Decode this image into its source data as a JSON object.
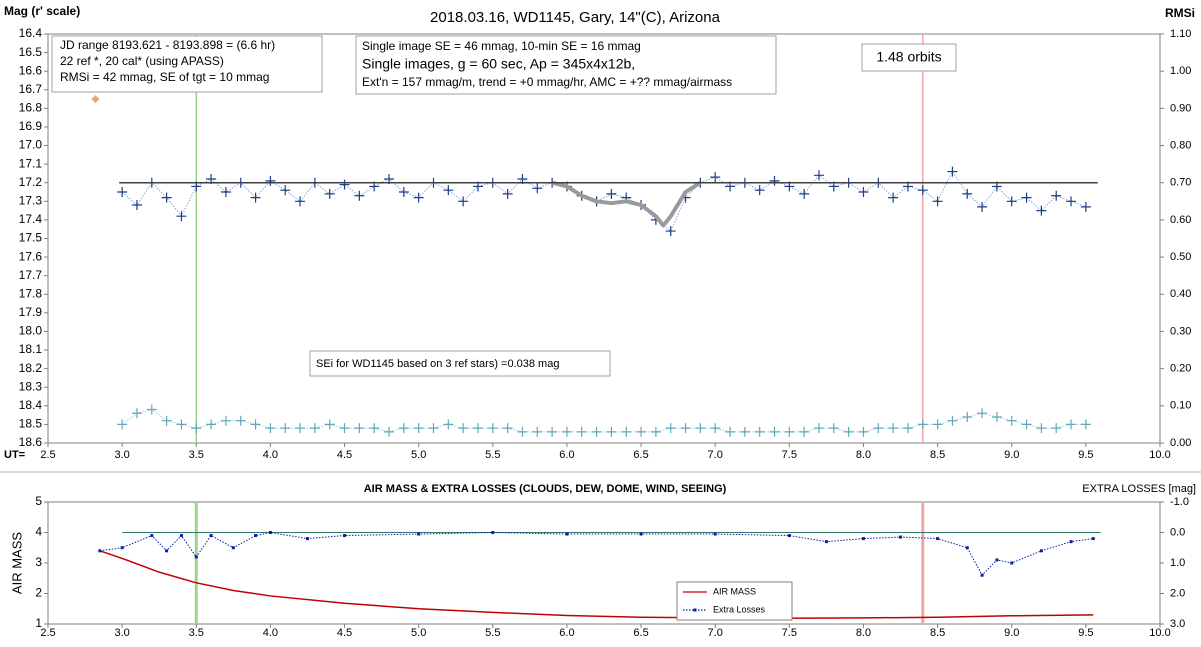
{
  "charts": [
    {
      "type": "scatter",
      "title": "2018.03.16,  WD1145, Gary, 14\"(C), Arizona",
      "y_label": "Mag (r' scale)",
      "y2_label": "RMSi",
      "x_label": "UT=",
      "xlim": [
        2.5,
        10
      ],
      "ylim": [
        18.6,
        16.4
      ],
      "y2lim": [
        0,
        1.1
      ],
      "xticks": [
        2.5,
        {
          "value": 3,
          "label": "3.0"
        },
        3.5,
        {
          "value": 4,
          "label": "4.0"
        },
        4.5,
        {
          "value": 5,
          "label": "5.0"
        },
        5.5,
        {
          "value": 6,
          "label": "6.0"
        },
        6.5,
        {
          "value": 7,
          "label": "7.0"
        },
        7.5,
        {
          "value": 8,
          "label": "8.0"
        },
        8.5,
        {
          "value": 9,
          "label": "9.0"
        },
        9.5,
        {
          "value": 10,
          "label": "10.0"
        }
      ],
      "yticks": [
        16.4,
        16.5,
        16.6,
        16.7,
        16.8,
        16.9,
        {
          "value": 17,
          "label": "17.0"
        },
        17.1,
        17.2,
        17.3,
        17.4,
        17.5,
        17.6,
        17.7,
        17.8,
        17.9,
        {
          "value": 18,
          "label": "18.0"
        },
        18.1,
        18.2,
        18.3,
        18.4,
        18.5,
        18.6
      ],
      "y2ticks": [
        {
          "value": 1.1,
          "label": "1.10"
        },
        {
          "value": 1,
          "label": "1.00"
        },
        {
          "value": 0.9,
          "label": "0.90"
        },
        {
          "value": 0.8,
          "label": "0.80"
        },
        {
          "value": 0.7,
          "label": "0.70"
        },
        {
          "value": 0.6,
          "label": "0.60"
        },
        {
          "value": 0.5,
          "label": "0.50"
        },
        {
          "value": 0.4,
          "label": "0.40"
        },
        {
          "value": 0.3,
          "label": "0.30"
        },
        {
          "value": 0.2,
          "label": "0.20"
        },
        {
          "value": 0.1,
          "label": "0.10"
        },
        {
          "value": 0,
          "label": "0.00"
        }
      ],
      "vlines": [
        {
          "x": 3.5,
          "color": "#9fd38a"
        },
        {
          "x": 8.4,
          "color": "#f2a7a7"
        }
      ],
      "annotations": {
        "box1": [
          "JD range  8193.621 - 8193.898  = (6.6 hr)",
          "22 ref *, 20 cal* (using APASS)",
          "RMSi = 42 mmag, SE of tgt = 10 mmag"
        ],
        "box2": [
          "Single image SE = 46 mmag, 10-min SE = 16 mmag",
          "Single images, g = 60 sec, Ap = 345x4x12b,",
          "Ext'n = 157 mmag/m, trend = +0 mmag/hr, AMC = +?? mmag/airmass"
        ],
        "orbits": "1.48 orbits",
        "sei": "SEi for WD1145 based on 3 ref stars) =0.038 mag"
      },
      "series": [
        {
          "color": "#1f3c88",
          "marker": "cross",
          "line": "dotted",
          "lineColor": "#7fa8d8",
          "x": [
            3.0,
            3.1,
            3.2,
            3.3,
            3.4,
            3.5,
            3.6,
            3.7,
            3.8,
            3.9,
            4.0,
            4.1,
            4.2,
            4.3,
            4.4,
            4.5,
            4.6,
            4.7,
            4.8,
            4.9,
            5.0,
            5.1,
            5.2,
            5.3,
            5.4,
            5.5,
            5.6,
            5.7,
            5.8,
            5.9,
            6.0,
            6.1,
            6.2,
            6.3,
            6.4,
            6.5,
            6.6,
            6.7,
            6.8,
            6.9,
            7.0,
            7.1,
            7.2,
            7.3,
            7.4,
            7.5,
            7.6,
            7.7,
            7.8,
            7.9,
            8.0,
            8.1,
            8.2,
            8.3,
            8.4,
            8.5,
            8.6,
            8.7,
            8.8,
            8.9,
            9.0,
            9.1,
            9.2,
            9.3,
            9.4,
            9.5
          ],
          "values": [
            17.25,
            17.32,
            17.2,
            17.28,
            17.38,
            17.22,
            17.18,
            17.25,
            17.2,
            17.28,
            17.19,
            17.24,
            17.3,
            17.2,
            17.26,
            17.21,
            17.27,
            17.22,
            17.18,
            17.25,
            17.28,
            17.2,
            17.24,
            17.3,
            17.22,
            17.2,
            17.26,
            17.18,
            17.23,
            17.2,
            17.22,
            17.27,
            17.3,
            17.26,
            17.28,
            17.32,
            17.4,
            17.46,
            17.28,
            17.2,
            17.17,
            17.22,
            17.2,
            17.24,
            17.19,
            17.22,
            17.26,
            17.16,
            17.22,
            17.2,
            17.25,
            17.2,
            17.28,
            17.22,
            17.24,
            17.3,
            17.14,
            17.26,
            17.33,
            17.22,
            17.3,
            17.28,
            17.35,
            17.27,
            17.3,
            17.33
          ]
        },
        {
          "color": "#9a9a9a",
          "line": "thick",
          "x": [
            5.9,
            6.0,
            6.1,
            6.2,
            6.3,
            6.4,
            6.5,
            6.6,
            6.65,
            6.7,
            6.8,
            6.9
          ],
          "values": [
            17.2,
            17.22,
            17.27,
            17.3,
            17.31,
            17.3,
            17.32,
            17.38,
            17.43,
            17.38,
            17.25,
            17.2
          ]
        },
        {
          "color": "#404040",
          "line": "solid",
          "x": [
            2.98,
            9.58
          ],
          "values": [
            17.2,
            17.2
          ]
        },
        {
          "color": "#f0a07a",
          "marker": "diamond",
          "x": [
            2.82
          ],
          "values": [
            16.75
          ]
        },
        {
          "color": "#5fa8b8",
          "marker": "cross",
          "line": "dotted",
          "lineColor": "#9fd0dc",
          "axis": "y2",
          "x": [
            3.0,
            3.1,
            3.2,
            3.3,
            3.4,
            3.5,
            3.6,
            3.7,
            3.8,
            3.9,
            4.0,
            4.1,
            4.2,
            4.3,
            4.4,
            4.5,
            4.6,
            4.7,
            4.8,
            4.9,
            5.0,
            5.1,
            5.2,
            5.3,
            5.4,
            5.5,
            5.6,
            5.7,
            5.8,
            5.9,
            6.0,
            6.1,
            6.2,
            6.3,
            6.4,
            6.5,
            6.6,
            6.7,
            6.8,
            6.9,
            7.0,
            7.1,
            7.2,
            7.3,
            7.4,
            7.5,
            7.6,
            7.7,
            7.8,
            7.9,
            8.0,
            8.1,
            8.2,
            8.3,
            8.4,
            8.5,
            8.6,
            8.7,
            8.8,
            8.9,
            9.0,
            9.1,
            9.2,
            9.3,
            9.4,
            9.5
          ],
          "values": [
            0.05,
            0.08,
            0.09,
            0.06,
            0.05,
            0.04,
            0.05,
            0.06,
            0.06,
            0.05,
            0.04,
            0.04,
            0.04,
            0.04,
            0.05,
            0.04,
            0.04,
            0.04,
            0.03,
            0.04,
            0.04,
            0.04,
            0.05,
            0.04,
            0.04,
            0.04,
            0.04,
            0.03,
            0.03,
            0.03,
            0.03,
            0.03,
            0.03,
            0.03,
            0.03,
            0.03,
            0.03,
            0.04,
            0.04,
            0.04,
            0.04,
            0.03,
            0.03,
            0.03,
            0.03,
            0.03,
            0.03,
            0.04,
            0.04,
            0.03,
            0.03,
            0.04,
            0.04,
            0.04,
            0.05,
            0.05,
            0.06,
            0.07,
            0.08,
            0.07,
            0.06,
            0.05,
            0.04,
            0.04,
            0.05,
            0.05
          ]
        }
      ]
    },
    {
      "type": "line",
      "title": "AIR MASS & EXTRA LOSSES (CLOUDS, DEW, DOME, WIND, SEEING)",
      "y_label": "AIR MASS",
      "y2_label": "EXTRA LOSSES [mag]",
      "xlim": [
        2.5,
        10
      ],
      "ylim": [
        1,
        5
      ],
      "y2lim": [
        3,
        -1
      ],
      "xticks": [
        2.5,
        {
          "value": 3,
          "label": "3.0"
        },
        3.5,
        {
          "value": 4,
          "label": "4.0"
        },
        4.5,
        {
          "value": 5,
          "label": "5.0"
        },
        5.5,
        {
          "value": 6,
          "label": "6.0"
        },
        6.5,
        {
          "value": 7,
          "label": "7.0"
        },
        7.5,
        {
          "value": 8,
          "label": "8.0"
        },
        8.5,
        {
          "value": 9,
          "label": "9.0"
        },
        9.5,
        {
          "value": 10,
          "label": "10.0"
        }
      ],
      "yticks": [
        1,
        2,
        3,
        4,
        5
      ],
      "y2ticks": [
        {
          "value": -1,
          "label": "-1.0"
        },
        {
          "value": 0,
          "label": "0.0"
        },
        {
          "value": 1,
          "label": "1.0"
        },
        {
          "value": 2,
          "label": "2.0"
        },
        {
          "value": 3,
          "label": "3.0"
        }
      ],
      "vlines": [
        {
          "x": 3.5,
          "color": "#9fd38a"
        },
        {
          "x": 8.4,
          "color": "#f2a7a7"
        }
      ],
      "hline": {
        "axis": "y2",
        "value": 0,
        "color": "#2f7a6a"
      },
      "series": [
        {
          "name": "AIR MASS",
          "color": "#c00000",
          "line": "solid",
          "x": [
            2.85,
            3.0,
            3.25,
            3.5,
            3.75,
            4.0,
            4.5,
            5.0,
            5.5,
            6.0,
            6.5,
            7.0,
            7.5,
            8.0,
            8.5,
            9.0,
            9.55
          ],
          "values": [
            3.4,
            3.15,
            2.7,
            2.35,
            2.1,
            1.92,
            1.68,
            1.5,
            1.38,
            1.28,
            1.22,
            1.2,
            1.19,
            1.2,
            1.22,
            1.27,
            1.3
          ]
        },
        {
          "name": "Extra Losses",
          "color": "#0a1f9f",
          "line": "dotted",
          "marker": "dot",
          "axis": "y2",
          "x": [
            2.85,
            3.0,
            3.2,
            3.3,
            3.4,
            3.5,
            3.6,
            3.75,
            3.9,
            4.0,
            4.25,
            4.5,
            5.0,
            5.5,
            6.0,
            6.5,
            7.0,
            7.5,
            7.75,
            8.0,
            8.25,
            8.5,
            8.7,
            8.8,
            8.9,
            9.0,
            9.2,
            9.4,
            9.55
          ],
          "values": [
            0.6,
            0.5,
            0.1,
            0.6,
            0.1,
            0.8,
            0.1,
            0.5,
            0.1,
            0.0,
            0.2,
            0.1,
            0.05,
            0.0,
            0.05,
            0.05,
            0.05,
            0.1,
            0.3,
            0.2,
            0.15,
            0.2,
            0.5,
            1.4,
            0.9,
            1.0,
            0.6,
            0.3,
            0.2
          ]
        }
      ]
    }
  ]
}
